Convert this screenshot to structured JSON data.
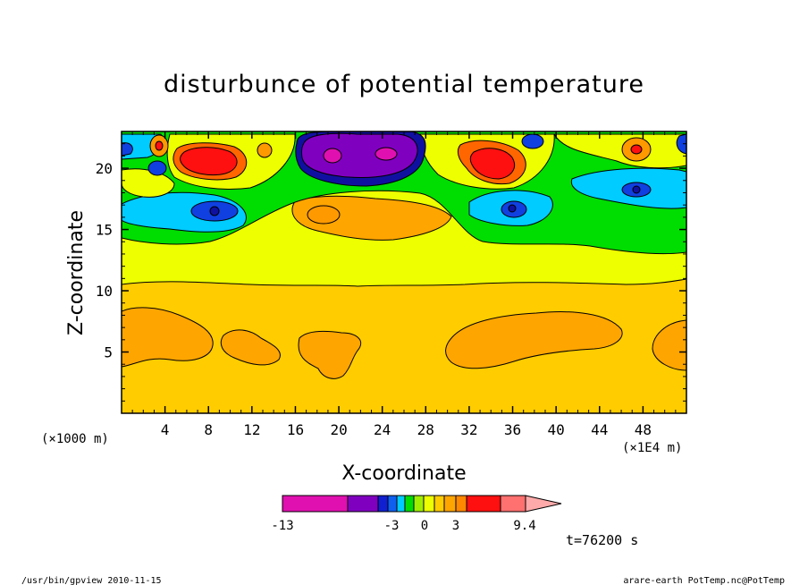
{
  "chart_data": {
    "type": "heatmap",
    "title": "disturbunce of potential temperature",
    "xlabel": "X-coordinate",
    "ylabel": "Z-coordinate",
    "x_scale_label": "(×1000 m)",
    "x_unit_label": "(×1E4 m)",
    "xlim": [
      0,
      52
    ],
    "ylim": [
      0,
      23
    ],
    "xticks": [
      "4",
      "8",
      "12",
      "16",
      "20",
      "24",
      "28",
      "32",
      "36",
      "40",
      "44",
      "48"
    ],
    "yticks": [
      "5",
      "10",
      "15",
      "20"
    ],
    "time_label": "t=76200 s",
    "colorbar": {
      "labels": [
        "-13",
        "-3",
        "0",
        "3",
        "9.4"
      ],
      "colors": [
        "#e010b0",
        "#8000c0",
        "#1020d0",
        "#1060f0",
        "#00ccff",
        "#00dd00",
        "#a0ee00",
        "#eeff00",
        "#ffcc00",
        "#ffa500",
        "#ff8800",
        "#ff1010",
        "#ff7070",
        "#ffaaaa"
      ]
    },
    "field_colors": {
      "base": "#ffcc00",
      "warm_blob": "#ffa500",
      "mid_band": "#eeff00",
      "green": "#00dd00",
      "cyan": "#00ccff",
      "blue": "#1040e0",
      "navy": "#1010a0",
      "purple": "#8000c0",
      "magenta": "#e010b0",
      "red": "#ff1010",
      "orange_red": "#ff6600",
      "light_orange": "#ff9900"
    }
  },
  "footer": {
    "left": "/usr/bin/gpview  2010-11-15",
    "right": "arare-earth_PotTemp.nc@PotTemp"
  }
}
